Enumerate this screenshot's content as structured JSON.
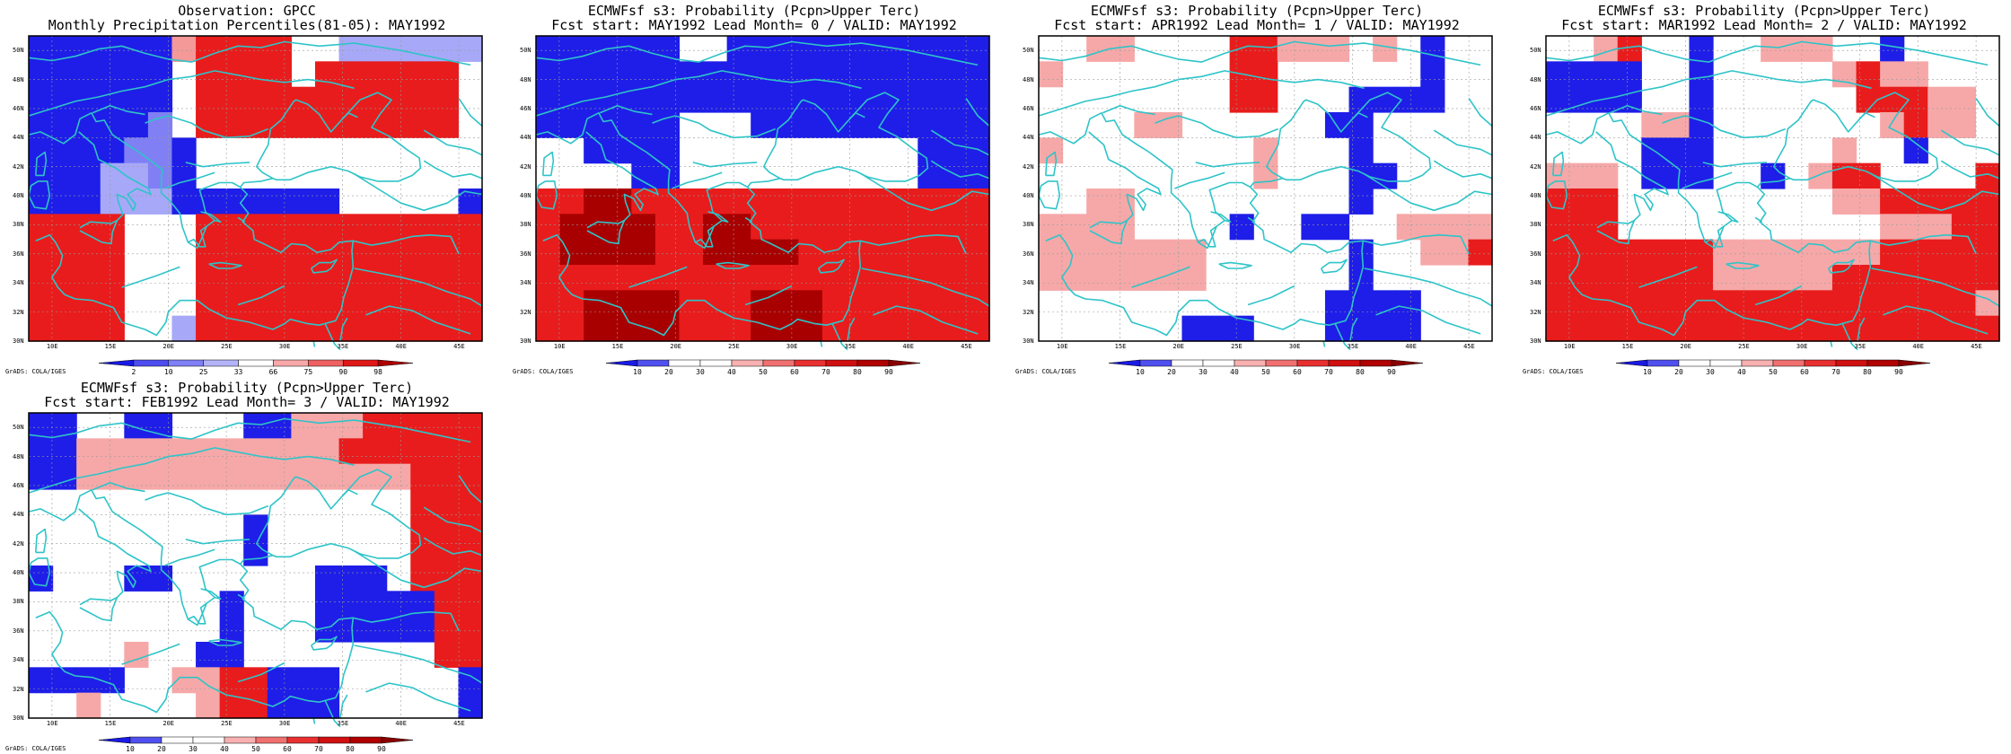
{
  "credit": "GrADS: COLA/IGES",
  "map": {
    "lon_range": [
      8,
      47
    ],
    "lat_range": [
      30,
      51
    ],
    "x_ticks": [
      "10E",
      "15E",
      "20E",
      "25E",
      "30E",
      "35E",
      "40E",
      "45E"
    ],
    "y_ticks": [
      "30N",
      "32N",
      "34N",
      "36N",
      "38N",
      "40N",
      "42N",
      "44N",
      "46N",
      "48N",
      "50N"
    ],
    "grid": true
  },
  "colors": {
    "coast": "#2ec4c8",
    "frame": "#000000"
  },
  "panels": [
    {
      "name": "observation",
      "title1": "Observation: GPCC",
      "title2": "Monthly Precipitation Percentiles(81-05): MAY1992",
      "colorbar": {
        "labels": [
          "2",
          "10",
          "25",
          "33",
          "66",
          "75",
          "90",
          "98"
        ],
        "colors": [
          "#1a1ae6",
          "#4d4df0",
          "#7f7ff6",
          "#b3b3fa",
          "#ffffff",
          "#f8a8a8",
          "#f06060",
          "#e01818",
          "#b00000"
        ]
      },
      "grid_rows": [
        "BBBBBBPRRRRWWLLLLLL",
        "BBBBBBWRRRRWRRRRRRW",
        "BBBBBBWRRRRRRRRRRRW",
        "BBBBBCWRRRRRRRRRRRW",
        "BBBBCCBWWWWWWWWWWWW",
        "BBBLLCBWWWWWWWWWWWW",
        "BBBLLLBBBBBBBWWWWWB",
        "RRRRWWWRRRRRRRRRRRR",
        "RRRRWWWRRRRRRRRRRRR",
        "RRRRWWWRRRRRRRRRRRR",
        "RRRRWWWRRRRRRRRRRRR",
        "RRRRWWLRRRRRRRRRRRR"
      ]
    },
    {
      "name": "lead0",
      "title1": "ECMWFsf s3: Probability (Pcpn>Upper Terc)",
      "title2": "Fcst start: MAY1992  Lead Month= 0 / VALID: MAY1992",
      "colorbar": {
        "labels": [
          "10",
          "20",
          "30",
          "40",
          "50",
          "60",
          "70",
          "80",
          "90"
        ],
        "colors": [
          "#1a1ae6",
          "#5050f0",
          "#ffffff",
          "#ffffff",
          "#f8b0b0",
          "#f07070",
          "#e83030",
          "#d01010",
          "#b00000",
          "#8a0000"
        ]
      },
      "grid_rows": [
        "BBBBBBWWBBBBBBBBBBB",
        "BBBBBBBBBBBBBBBBBBB",
        "BBBBBBBBBBBBBBBBBBB",
        "BBBBBBWWWBBBBBBBBBB",
        "WWBBBBWWWWWWWWWWBBB",
        "WWWWBBWWWWWWWWWWBBB",
        "RRDDRRRRRRRRRRRRRRR",
        "RDDDDRRDDRRRRRRRRRR",
        "RDDDDRRDDDDRRRRRRRR",
        "RRRRRRRRRRRRRRRRRRR",
        "RRDDDDRRRDDDRRRRRRR",
        "RRDDDDRRRDDDRRRRRRR"
      ]
    },
    {
      "name": "lead1",
      "title1": "ECMWFsf s3: Probability (Pcpn>Upper Terc)",
      "title2": "Fcst start: APR1992  Lead Month= 1 / VALID: MAY1992",
      "colorbar": {
        "labels": [
          "10",
          "20",
          "30",
          "40",
          "50",
          "60",
          "70",
          "80",
          "90"
        ],
        "colors": [
          "#1a1ae6",
          "#5050f0",
          "#ffffff",
          "#ffffff",
          "#f8b0b0",
          "#f07070",
          "#e83030",
          "#d01010",
          "#b00000",
          "#8a0000"
        ]
      },
      "grid_rows": [
        "WWLLWWWWRRLLLWLWBWW",
        "LWWWWWWWRRWWWWWWBWW",
        "WWWWWWWWRRWWWBBBBWW",
        "WWWWLLWWWWWWBBWWWWW",
        "LWWWWWWWWLWWWBWWWWW",
        "WWWWWWWWWLWWWBBWWWW",
        "WWLLWWWWWWWWWBWWWWW",
        "LLLLWWWWBWWBBWWLLLL",
        "LLLLLLLWWWWWWBWWLLR",
        "LLLLLLLWWWWWWBWWWWW",
        "WWWWWWWWWWWWBBBBWWW",
        "WWWWWWBBBWWWBBBBWWW"
      ]
    },
    {
      "name": "lead2",
      "title1": "ECMWFsf s3: Probability (Pcpn>Upper Terc)",
      "title2": "Fcst start: MAR1992  Lead Month= 2 / VALID: MAY1992",
      "colorbar": {
        "labels": [
          "10",
          "20",
          "30",
          "40",
          "50",
          "60",
          "70",
          "80",
          "90"
        ],
        "colors": [
          "#1a1ae6",
          "#5050f0",
          "#ffffff",
          "#ffffff",
          "#f8b0b0",
          "#f07070",
          "#e83030",
          "#d01010",
          "#b00000",
          "#8a0000"
        ]
      },
      "grid_rows": [
        "WWLRWWBWWLLLWWBWWWW",
        "BBBBWWBWWWWWLRLLWWW",
        "BBBBWWBWWWWWWRRRLLW",
        "WWWWLLBWWWWWWWLRLLW",
        "WWWWBBBWWWWWLWWBWWW",
        "LLLWBBBWWBWLRRWWWWR",
        "RRRWWWWWWWWWLLRRRRR",
        "RRRWWWWWWWWWWWLLLRR",
        "RRRRRRRLLLLLLLRRRRR",
        "RRRRRRRLLLLLRRRRRRR",
        "RRRRRRRRRRRRRRRRRRL",
        "RRRRRRRRRRRRRRRRRRR"
      ]
    },
    {
      "name": "lead3",
      "title1": "ECMWFsf s3: Probability (Pcpn>Upper Terc)",
      "title2": "Fcst start: FEB1992  Lead Month= 3 / VALID: MAY1992",
      "colorbar": {
        "labels": [
          "10",
          "20",
          "30",
          "40",
          "50",
          "60",
          "70",
          "80",
          "90"
        ],
        "colors": [
          "#1a1ae6",
          "#5050f0",
          "#ffffff",
          "#ffffff",
          "#f8b0b0",
          "#f07070",
          "#e83030",
          "#d01010",
          "#b00000",
          "#8a0000"
        ]
      },
      "grid_rows": [
        "BBWWBBWWWBBLLLRRRRR",
        "BBLLLLLLLLLLLRRRRRR",
        "BBLLLLLLLLLLLLLLRRR",
        "WWWWWWWWWWWWWWWWRRR",
        "WWWWWWWWWBWWWWWWRRR",
        "WWWWWWWWWBWWWWWWRRR",
        "BWWWBBWWWWWWBBBWRRR",
        "WWWWWWWWBWWWBBBBBRR",
        "WWWWWWWWBWWWBBBBBRR",
        "WWWWLWWBBWWWWWWWWRR",
        "BBBBWWLLRRBBBWWWWWB",
        "WWLWWWWLRRBBBWWWWWB"
      ]
    }
  ]
}
